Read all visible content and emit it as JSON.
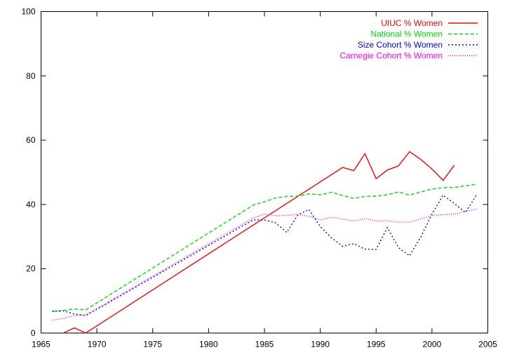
{
  "chart_data": {
    "type": "line",
    "title": "",
    "xlabel": "",
    "ylabel": "",
    "xlim": [
      1965,
      2005
    ],
    "ylim": [
      0,
      100
    ],
    "x_ticks": [
      "1965",
      "1970",
      "1975",
      "1980",
      "1985",
      "1990",
      "1995",
      "2000",
      "2005"
    ],
    "y_ticks": [
      "0",
      "20",
      "40",
      "60",
      "80",
      "100"
    ],
    "grid": false,
    "legend_position": "top-right",
    "series": [
      {
        "name": "UIUC % Women",
        "color": "#ff0000",
        "dash": "solid",
        "points": [
          [
            1967,
            0
          ],
          [
            1968,
            1.6
          ],
          [
            1969,
            0
          ],
          [
            1992,
            51.5
          ],
          [
            1993,
            50.5
          ],
          [
            1994,
            55.8
          ],
          [
            1995,
            48
          ],
          [
            1996,
            50.7
          ],
          [
            1997,
            52
          ],
          [
            1998,
            56.4
          ],
          [
            1999,
            54
          ],
          [
            2000,
            51
          ],
          [
            2001,
            47.5
          ],
          [
            2002,
            52.2
          ]
        ]
      },
      {
        "name": "National % Women",
        "color": "#00dd00",
        "dash": "dashed",
        "points": [
          [
            1966,
            6.8
          ],
          [
            1967,
            7
          ],
          [
            1968,
            7.5
          ],
          [
            1969,
            7.2
          ],
          [
            1984,
            39.8
          ],
          [
            1985,
            40.8
          ],
          [
            1986,
            42
          ],
          [
            1987,
            42.5
          ],
          [
            1988,
            42.6
          ],
          [
            1989,
            43.3
          ],
          [
            1990,
            43
          ],
          [
            1991,
            43.8
          ],
          [
            1992,
            42.8
          ],
          [
            1993,
            41.9
          ],
          [
            1994,
            42.5
          ],
          [
            1995,
            42.6
          ],
          [
            1996,
            43
          ],
          [
            1997,
            43.9
          ],
          [
            1998,
            42.9
          ],
          [
            1999,
            43.9
          ],
          [
            2000,
            44.8
          ],
          [
            2001,
            45.2
          ],
          [
            2002,
            45.3
          ],
          [
            2003,
            45.8
          ],
          [
            2004,
            46.3
          ]
        ]
      },
      {
        "name": "Size Cohort % Women",
        "color": "#0000ff",
        "dash": "dotted",
        "points": [
          [
            1966,
            6.7
          ],
          [
            1967,
            6.9
          ],
          [
            1968,
            5.9
          ],
          [
            1969,
            5.4
          ],
          [
            1984,
            35.2
          ],
          [
            1985,
            35.2
          ],
          [
            1986,
            34.3
          ],
          [
            1987,
            31.3
          ],
          [
            1988,
            36.8
          ],
          [
            1989,
            38.4
          ],
          [
            1990,
            33.1
          ],
          [
            1991,
            29.6
          ],
          [
            1992,
            27
          ],
          [
            1993,
            27.8
          ],
          [
            1994,
            26.1
          ],
          [
            1995,
            26
          ],
          [
            1996,
            32.8
          ],
          [
            1997,
            26.6
          ],
          [
            1998,
            24
          ],
          [
            1999,
            29.9
          ],
          [
            2000,
            37
          ],
          [
            2001,
            42.9
          ],
          [
            2002,
            40.3
          ],
          [
            2003,
            37.5
          ],
          [
            2004,
            43
          ]
        ]
      },
      {
        "name": "Carnegie Cohort % Women",
        "color": "#ff00ff",
        "dash": "fine-dotted",
        "points": [
          [
            1966,
            4
          ],
          [
            1967,
            4.5
          ],
          [
            1968,
            5.5
          ],
          [
            1969,
            5.6
          ],
          [
            1984,
            35.8
          ],
          [
            1985,
            37
          ],
          [
            1986,
            36.5
          ],
          [
            1987,
            36.6
          ],
          [
            1988,
            36.9
          ],
          [
            1989,
            36.3
          ],
          [
            1990,
            35.2
          ],
          [
            1991,
            36
          ],
          [
            1992,
            35.5
          ],
          [
            1993,
            34.9
          ],
          [
            1994,
            35.6
          ],
          [
            1995,
            34.8
          ],
          [
            1996,
            34.9
          ],
          [
            1997,
            34.5
          ],
          [
            1998,
            34.5
          ],
          [
            1999,
            35.5
          ],
          [
            2000,
            36.6
          ],
          [
            2001,
            36.8
          ],
          [
            2002,
            37
          ],
          [
            2003,
            37.8
          ],
          [
            2004,
            38.6
          ]
        ]
      }
    ]
  }
}
